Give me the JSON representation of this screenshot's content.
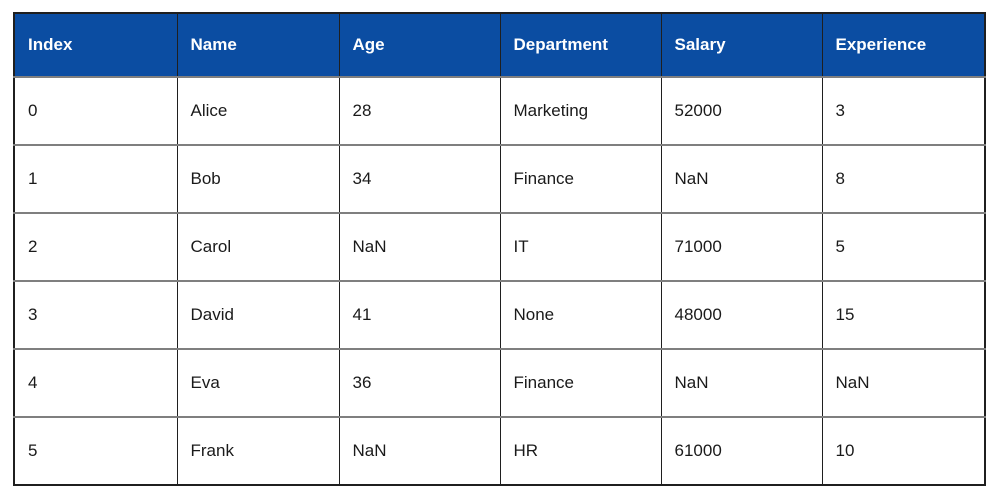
{
  "chart_data": {
    "type": "table",
    "columns": [
      "Index",
      "Name",
      "Age",
      "Department",
      "Salary",
      "Experience"
    ],
    "rows": [
      [
        "0",
        "Alice",
        "28",
        "Marketing",
        "52000",
        "3"
      ],
      [
        "1",
        "Bob",
        "34",
        "Finance",
        "NaN",
        "8"
      ],
      [
        "2",
        "Carol",
        "NaN",
        "IT",
        "71000",
        "5"
      ],
      [
        "3",
        "David",
        "41",
        "None",
        "48000",
        "15"
      ],
      [
        "4",
        "Eva",
        "36",
        "Finance",
        "NaN",
        "NaN"
      ],
      [
        "5",
        "Frank",
        "NaN",
        "HR",
        "61000",
        "10"
      ]
    ]
  },
  "colors": {
    "header_bg": "#0B4DA2",
    "header_text": "#FFFFFF",
    "cell_text": "#1A1A1A",
    "outer_border": "#1F1F1F",
    "row_border": "#7F7F7F",
    "page_bg": "#FFFFFF"
  }
}
